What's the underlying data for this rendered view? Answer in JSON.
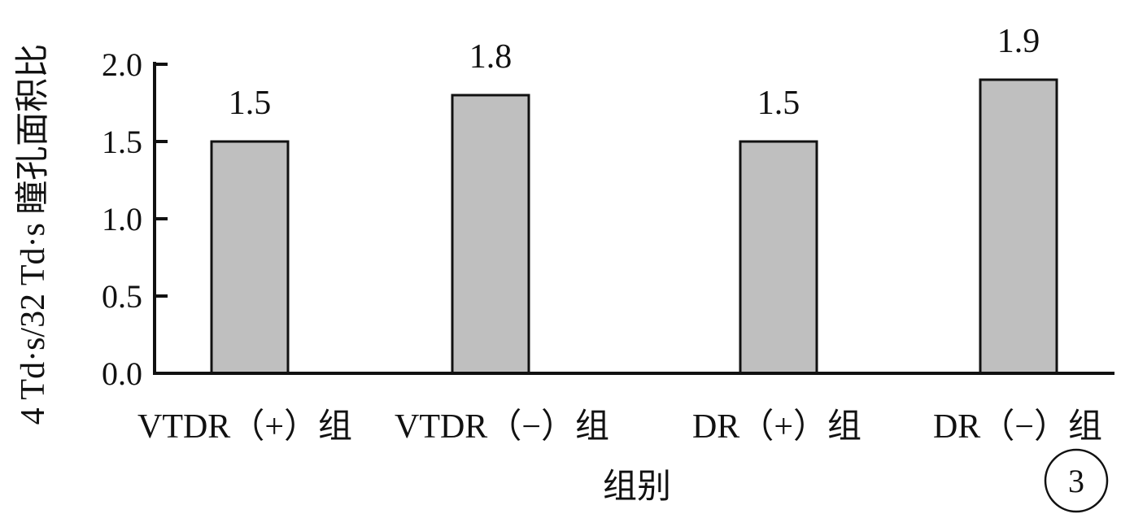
{
  "chart_data": {
    "type": "bar",
    "title": "",
    "xlabel": "组别",
    "ylabel": "4 Td·s/32 Td·s 瞳孔面积比",
    "categories": [
      "VTDR（+）组",
      "VTDR（−）组",
      "DR（+）组",
      "DR（−）组"
    ],
    "values": [
      1.5,
      1.8,
      1.5,
      1.9
    ],
    "value_labels": [
      "1.5",
      "1.8",
      "1.5",
      "1.9"
    ],
    "ylim": [
      0,
      2.0
    ],
    "yticks": [
      0.0,
      0.5,
      1.0,
      1.5,
      2.0
    ],
    "ytick_labels": [
      "0.0",
      "0.5",
      "1.0",
      "1.5",
      "2.0"
    ],
    "grid": false,
    "legend": "none",
    "colors": {
      "bar_fill": "#bfbfbf",
      "bar_stroke": "#111111",
      "axis": "#111111"
    }
  },
  "panel_badge": "3"
}
